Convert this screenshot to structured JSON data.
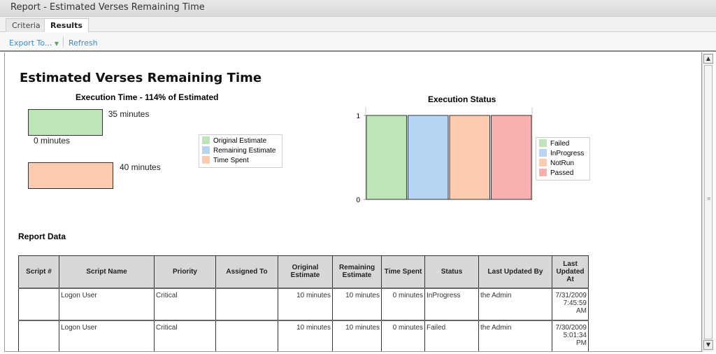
{
  "window": {
    "title": "Report - Estimated Verses Remaining Time"
  },
  "tabs": [
    {
      "label": "Criteria",
      "active": false
    },
    {
      "label": "Results",
      "active": true
    }
  ],
  "toolbar": {
    "export_label": "Export To...",
    "refresh_label": "Refresh"
  },
  "report": {
    "title": "Estimated Verses Remaining Time",
    "section_label": "Report Data"
  },
  "colors": {
    "green": "#bde5b8",
    "blue": "#b5d5f2",
    "peach": "#fdcbb0",
    "pink": "#fbb0b0",
    "link": "#3a8ac8"
  },
  "chart_data": [
    {
      "type": "bar",
      "orientation": "horizontal",
      "title": "Execution Time - 114% of Estimated",
      "series": [
        {
          "name": "Original Estimate",
          "value": 35,
          "label": "35 minutes",
          "color": "#bde5b8"
        },
        {
          "name": "Remaining Estimate",
          "value": 0,
          "label": "0 minutes",
          "color": "#b5d5f2"
        },
        {
          "name": "Time Spent",
          "value": 40,
          "label": "40 minutes",
          "color": "#fdcbb0"
        }
      ],
      "unit": "minutes",
      "legend": "right"
    },
    {
      "type": "bar",
      "title": "Execution Status",
      "categories": [
        "Failed",
        "InProgress",
        "NotRun",
        "Passed"
      ],
      "values": [
        1,
        1,
        1,
        1
      ],
      "colors": [
        "#bde5b8",
        "#b5d5f2",
        "#fdcbb0",
        "#fbb0b0"
      ],
      "ylim": [
        0,
        1
      ],
      "yticks": [
        "0",
        "1"
      ],
      "legend": "right"
    }
  ],
  "table": {
    "headers": [
      "Script #",
      "Script Name",
      "Priority",
      "Assigned To",
      "Original Estimate",
      "Remaining Estimate",
      "Time Spent",
      "Status",
      "Last Updated By",
      "Last Updated At"
    ],
    "rows": [
      [
        "",
        "Logon User",
        "Critical",
        "",
        "10 minutes",
        "10 minutes",
        "0 minutes",
        "InProgress",
        "the Admin",
        "7/31/2009 7:45:59 AM"
      ],
      [
        "",
        "Logon User",
        "Critical",
        "",
        "10 minutes",
        "10 minutes",
        "0 minutes",
        "Failed",
        "the Admin",
        "7/30/2009 5:01:34 PM"
      ]
    ]
  }
}
